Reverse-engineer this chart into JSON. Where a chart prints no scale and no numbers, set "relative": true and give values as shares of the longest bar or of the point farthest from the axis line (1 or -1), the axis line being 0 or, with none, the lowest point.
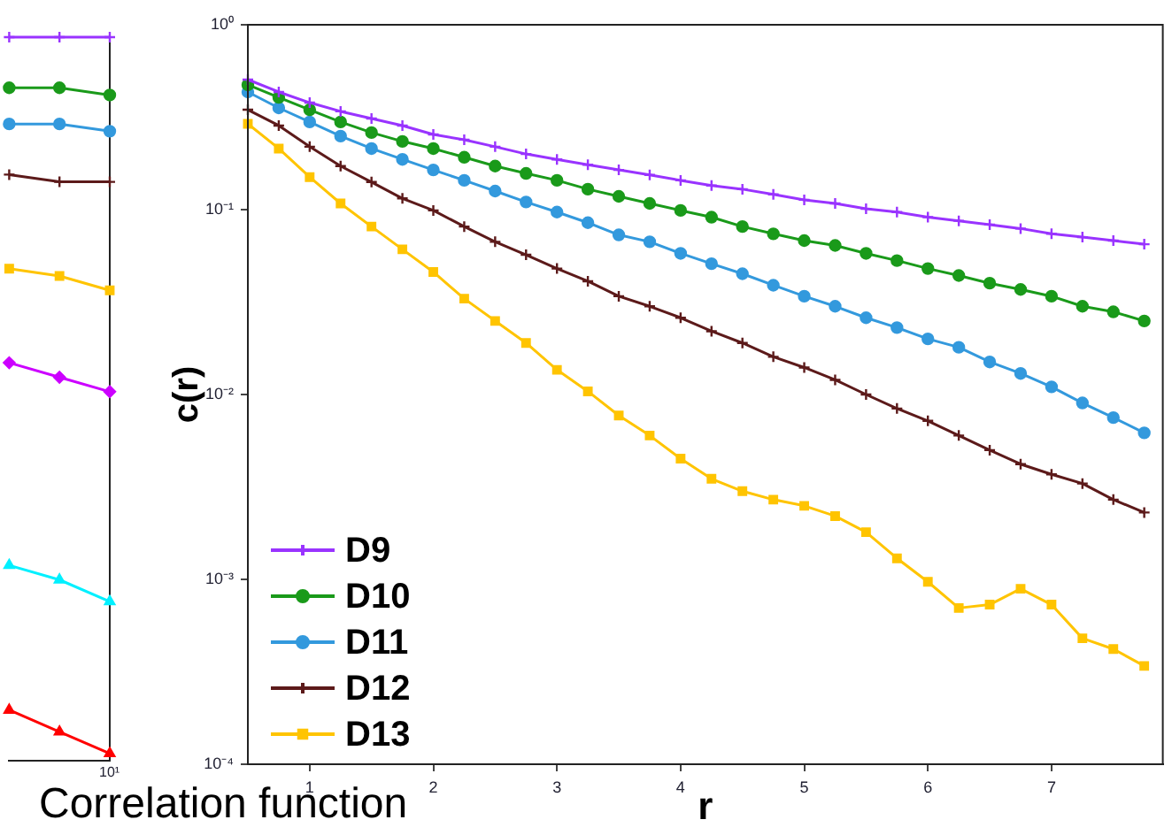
{
  "chart_data": [
    {
      "type": "line",
      "relative": true,
      "categories": [
        null,
        null,
        null
      ],
      "legend": false,
      "annotations": [
        "10¹"
      ],
      "series": [
        {
          "color": "#9933ff",
          "marker": "cross",
          "values": [
            1,
            1,
            1
          ]
        },
        {
          "color": "#1a9a1a",
          "marker": "circle",
          "values": [
            0.93,
            0.93,
            0.92
          ]
        },
        {
          "color": "#3399dd",
          "marker": "circle",
          "values": [
            0.88,
            0.88,
            0.87
          ]
        },
        {
          "color": "#5c1a1a",
          "marker": "cross",
          "values": [
            0.81,
            0.8,
            0.8
          ]
        },
        {
          "color": "#ffc400",
          "marker": "square",
          "values": [
            0.68,
            0.67,
            0.65
          ]
        },
        {
          "color": "#cc00ff",
          "marker": "diamond",
          "values": [
            0.55,
            0.53,
            0.51
          ]
        },
        {
          "color": "#00f0ff",
          "marker": "triangle",
          "values": [
            0.27,
            0.25,
            0.22
          ]
        },
        {
          "color": "#ff0000",
          "marker": "triangle",
          "values": [
            0.07,
            0.04,
            0.01
          ]
        }
      ]
    },
    {
      "type": "line",
      "xlabel": "r",
      "ylabel": "c(r)",
      "log": "y",
      "legend": "bottom left",
      "grid": false,
      "annotations": [
        "Correlation function"
      ],
      "xlim": [
        0.5,
        7.9
      ],
      "xticks": [
        1,
        2,
        3,
        4,
        5,
        6,
        7
      ],
      "ylim": [
        0.0001,
        1
      ],
      "yticks": [
        {
          "value": 0.0001,
          "label": "10⁻⁴"
        },
        {
          "value": 0.001,
          "label": "10⁻³"
        },
        {
          "value": 0.01,
          "label": "10⁻²"
        },
        {
          "value": 0.1,
          "label": "10⁻¹"
        },
        {
          "value": 1,
          "label": "10⁰"
        }
      ],
      "x": [
        0.5,
        0.75,
        1,
        1.25,
        1.5,
        1.75,
        2,
        2.25,
        2.5,
        2.75,
        3,
        3.25,
        3.5,
        3.75,
        4,
        4.25,
        4.5,
        4.75,
        5,
        5.25,
        5.5,
        5.75,
        6,
        6.25,
        6.5,
        6.75,
        7,
        7.25,
        7.5,
        7.75
      ],
      "series": [
        {
          "name": "D9",
          "color": "#9933ff",
          "marker": "cross",
          "values": [
            0.505,
            0.433,
            0.379,
            0.34,
            0.311,
            0.285,
            0.255,
            0.239,
            0.219,
            0.2,
            0.187,
            0.175,
            0.164,
            0.154,
            0.144,
            0.135,
            0.129,
            0.121,
            0.113,
            0.108,
            0.101,
            0.097,
            0.091,
            0.087,
            0.083,
            0.079,
            0.074,
            0.071,
            0.068,
            0.065
          ]
        },
        {
          "name": "D10",
          "color": "#1a9a1a",
          "marker": "circle",
          "values": [
            0.473,
            0.405,
            0.347,
            0.298,
            0.261,
            0.234,
            0.214,
            0.192,
            0.172,
            0.157,
            0.144,
            0.129,
            0.118,
            0.108,
            0.099,
            0.091,
            0.081,
            0.074,
            0.068,
            0.064,
            0.058,
            0.053,
            0.048,
            0.044,
            0.04,
            0.037,
            0.034,
            0.03,
            0.028,
            0.025
          ]
        },
        {
          "name": "D11",
          "color": "#3399dd",
          "marker": "circle",
          "values": [
            0.433,
            0.355,
            0.298,
            0.25,
            0.214,
            0.187,
            0.164,
            0.144,
            0.126,
            0.11,
            0.097,
            0.085,
            0.073,
            0.067,
            0.058,
            0.051,
            0.045,
            0.039,
            0.034,
            0.03,
            0.026,
            0.023,
            0.02,
            0.018,
            0.015,
            0.013,
            0.011,
            0.009,
            0.0075,
            0.0062
          ]
        },
        {
          "name": "D12",
          "color": "#5c1a1a",
          "marker": "cross",
          "values": [
            0.347,
            0.285,
            0.219,
            0.172,
            0.141,
            0.115,
            0.099,
            0.081,
            0.067,
            0.057,
            0.048,
            0.041,
            0.034,
            0.03,
            0.026,
            0.022,
            0.019,
            0.016,
            0.014,
            0.012,
            0.01,
            0.0084,
            0.0072,
            0.006,
            0.005,
            0.0042,
            0.0037,
            0.0033,
            0.0027,
            0.0023
          ]
        },
        {
          "name": "D13",
          "color": "#ffc400",
          "marker": "square",
          "values": [
            0.291,
            0.214,
            0.15,
            0.108,
            0.081,
            0.061,
            0.046,
            0.033,
            0.025,
            0.019,
            0.0136,
            0.0104,
            0.0077,
            0.006,
            0.0045,
            0.0035,
            0.003,
            0.0027,
            0.0025,
            0.0022,
            0.0018,
            0.0013,
            0.00097,
            0.0007,
            0.00073,
            0.00089,
            0.00073,
            0.00048,
            0.00042,
            0.00034
          ]
        }
      ]
    }
  ]
}
